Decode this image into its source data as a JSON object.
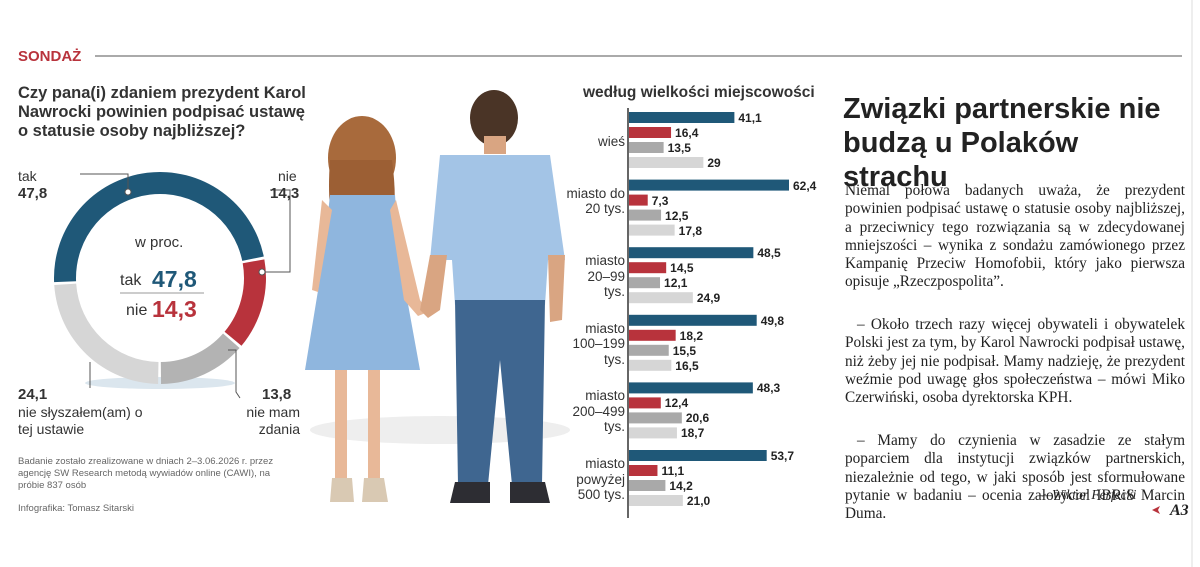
{
  "header": {
    "section": "SONDAŻ",
    "question": "Czy pana(i) zdaniem prezydent Karol Nawrocki powinien podpisać ustawę o statusie osoby najbliższej?"
  },
  "chart_data": [
    {
      "type": "pie",
      "donut": true,
      "subtitle": "w proc.",
      "categories": [
        "tak",
        "nie",
        "nie mam zdania",
        "nie słyszałem(am) o tej ustawie"
      ],
      "values": [
        47.8,
        14.3,
        13.8,
        24.1
      ],
      "value_labels": [
        "47,8",
        "14,3",
        "13,8",
        "24,1"
      ],
      "colors": [
        "#1f5878",
        "#b8333c",
        "#b3b3b3",
        "#d6d6d6"
      ]
    },
    {
      "type": "bar",
      "orientation": "horizontal",
      "title": "według wielkości miejscowości",
      "categories": [
        "wieś",
        "miasto do 20 tys.",
        "miasto 20–99 tys.",
        "miasto 100–199 tys.",
        "miasto 200–499 tys.",
        "miasto powyżej 500 tys."
      ],
      "series": [
        {
          "color": "#1f5878",
          "values": [
            41.1,
            62.4,
            48.5,
            49.8,
            48.3,
            53.7
          ],
          "value_labels": [
            "41,1",
            "62,4",
            "48,5",
            "49,8",
            "48,3",
            "53,7"
          ]
        },
        {
          "color": "#b8333c",
          "values": [
            16.4,
            7.3,
            14.5,
            18.2,
            12.4,
            11.1
          ],
          "value_labels": [
            "16,4",
            "7,3",
            "14,5",
            "18,2",
            "12,4",
            "11,1"
          ]
        },
        {
          "color": "#a9a9a9",
          "values": [
            13.5,
            12.5,
            12.1,
            15.5,
            20.6,
            14.2
          ],
          "value_labels": [
            "13,5",
            "12,5",
            "12,1",
            "15,5",
            "20,6",
            "14,2"
          ]
        },
        {
          "color": "#d6d6d6",
          "values": [
            29,
            17.8,
            24.9,
            16.5,
            18.7,
            21.0
          ],
          "value_labels": [
            "29",
            "17,8",
            "24,9",
            "16,5",
            "18,7",
            "21,0"
          ]
        }
      ]
    }
  ],
  "footnote": {
    "method": "Badanie zostało zrealizowane w dniach 2–3.06.2026 r. przez agencję SW Research metodą wywiadów online (CAWI), na próbie 837 osób",
    "credit": "Infografika: Tomasz Sitarski"
  },
  "article": {
    "title": "Związki partnerskie nie budzą u Polaków strachu",
    "paragraphs": [
      "Niemal połowa badanych uważa, że prezydent powinien podpisać ustawę o statusie osoby najbliższej, a przeciwnicy tego rozwiązania są w zdecydowanej mniejszości – wynika z sondażu zamówionego przez Kampanię Przeciw Homofobii, który jako pierwsza opisuje „Rzeczpospolita”.",
      "– Około trzech razy więcej obywateli i obywatelek Polski jest za tym, by Karol Nawrocki podpisał ustawę, niż żeby jej nie podpisał. Mamy nadzieję, że prezydent weźmie pod uwagę głos społeczeństwa – mówi Miko Czerwiński, osoba dyrektorska KPH.",
      "– Mamy do czynienia w zasadzie ze stałym poparciem dla instytucji związków partnerskich, niezależnie od tego, w jaki sposób jest sformułowane pytanie w badaniu – ocenia założyciel IBRiS Marcin Duma."
    ],
    "author": "—Wiktor Ferfecki",
    "page_ref": "A3"
  }
}
